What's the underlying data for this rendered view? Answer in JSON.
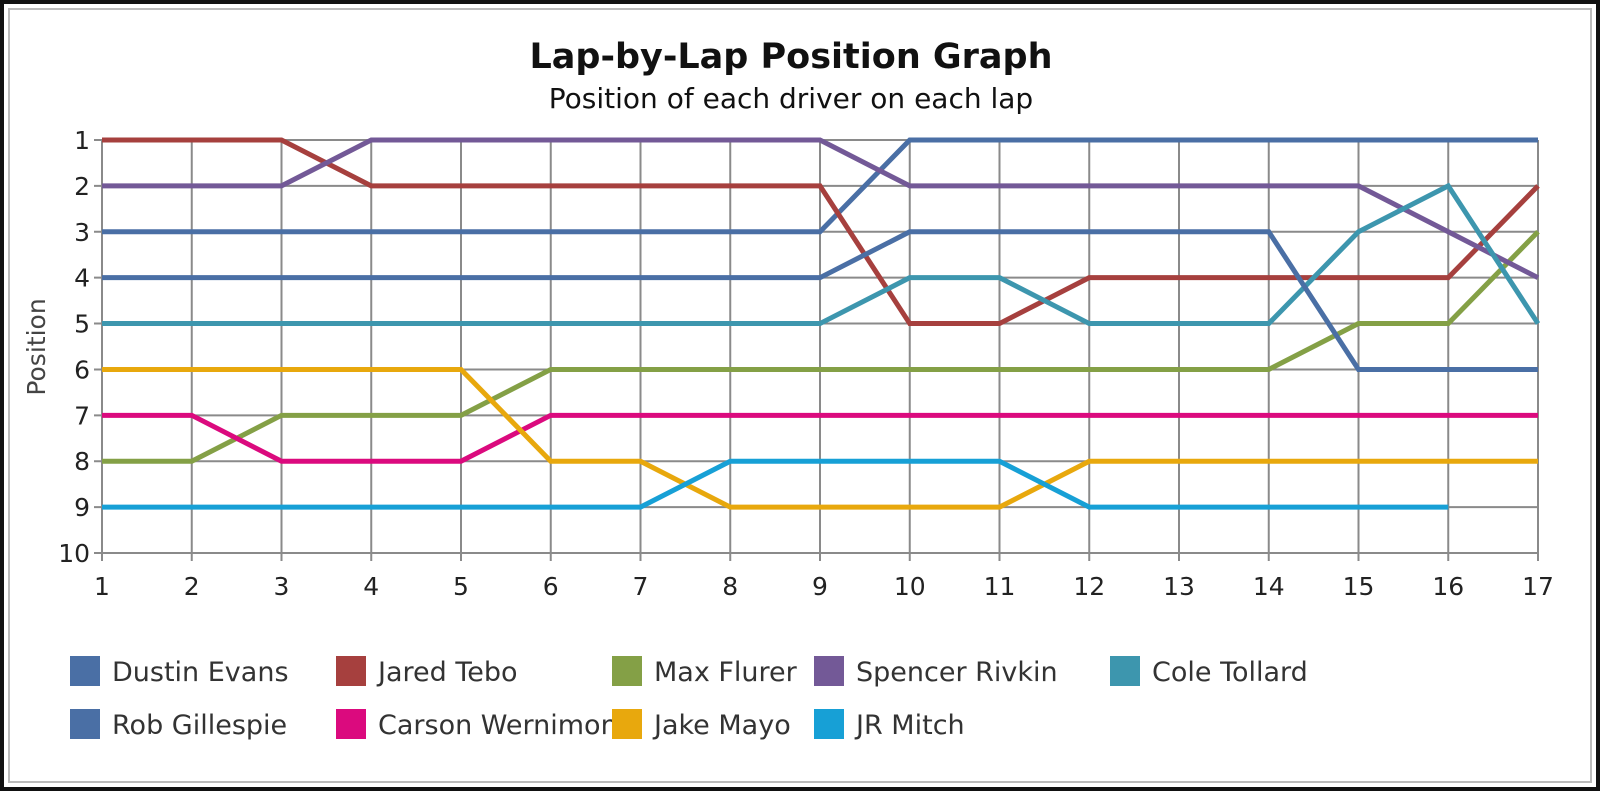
{
  "chart_data": {
    "type": "line",
    "title": "Lap-by-Lap Position Graph",
    "subtitle": "Position of each driver on each lap",
    "xlabel": "",
    "ylabel": "Position",
    "x": [
      1,
      2,
      3,
      4,
      5,
      6,
      7,
      8,
      9,
      10,
      11,
      12,
      13,
      14,
      15,
      16,
      17
    ],
    "xlim": [
      1,
      17
    ],
    "ylim": [
      1,
      10
    ],
    "y_inverted": true,
    "grid": true,
    "legend_position": "bottom",
    "series": [
      {
        "name": "Dustin Evans",
        "color": "#4a6fa5",
        "values": [
          3,
          3,
          3,
          3,
          3,
          3,
          3,
          3,
          3,
          1,
          1,
          1,
          1,
          1,
          1,
          1,
          1
        ]
      },
      {
        "name": "Jared Tebo",
        "color": "#a6403e",
        "values": [
          1,
          1,
          1,
          2,
          2,
          2,
          2,
          2,
          2,
          5,
          5,
          4,
          4,
          4,
          4,
          4,
          2
        ]
      },
      {
        "name": "Max Flurer",
        "color": "#84a046",
        "values": [
          8,
          8,
          7,
          7,
          7,
          6,
          6,
          6,
          6,
          6,
          6,
          6,
          6,
          6,
          5,
          5,
          3
        ]
      },
      {
        "name": "Spencer Rivkin",
        "color": "#735997",
        "values": [
          2,
          2,
          2,
          1,
          1,
          1,
          1,
          1,
          1,
          2,
          2,
          2,
          2,
          2,
          2,
          3,
          4
        ]
      },
      {
        "name": "Cole Tollard",
        "color": "#3d96ae",
        "values": [
          5,
          5,
          5,
          5,
          5,
          5,
          5,
          5,
          5,
          4,
          4,
          5,
          5,
          5,
          3,
          2,
          5
        ]
      },
      {
        "name": "Rob Gillespie",
        "color": "#4a6fa5",
        "values": [
          4,
          4,
          4,
          4,
          4,
          4,
          4,
          4,
          4,
          3,
          3,
          3,
          3,
          3,
          6,
          6,
          6
        ]
      },
      {
        "name": "Carson Wernimont",
        "color": "#db0a7e",
        "values": [
          7,
          7,
          8,
          8,
          8,
          7,
          7,
          7,
          7,
          7,
          7,
          7,
          7,
          7,
          7,
          7,
          7
        ]
      },
      {
        "name": "Jake Mayo",
        "color": "#e8a80d",
        "values": [
          6,
          6,
          6,
          6,
          6,
          8,
          8,
          9,
          9,
          9,
          9,
          8,
          8,
          8,
          8,
          8,
          8
        ]
      },
      {
        "name": "JR Mitch",
        "color": "#17a0d6",
        "values": [
          9,
          9,
          9,
          9,
          9,
          9,
          9,
          8,
          8,
          8,
          8,
          9,
          9,
          9,
          9,
          9,
          null
        ]
      }
    ]
  }
}
